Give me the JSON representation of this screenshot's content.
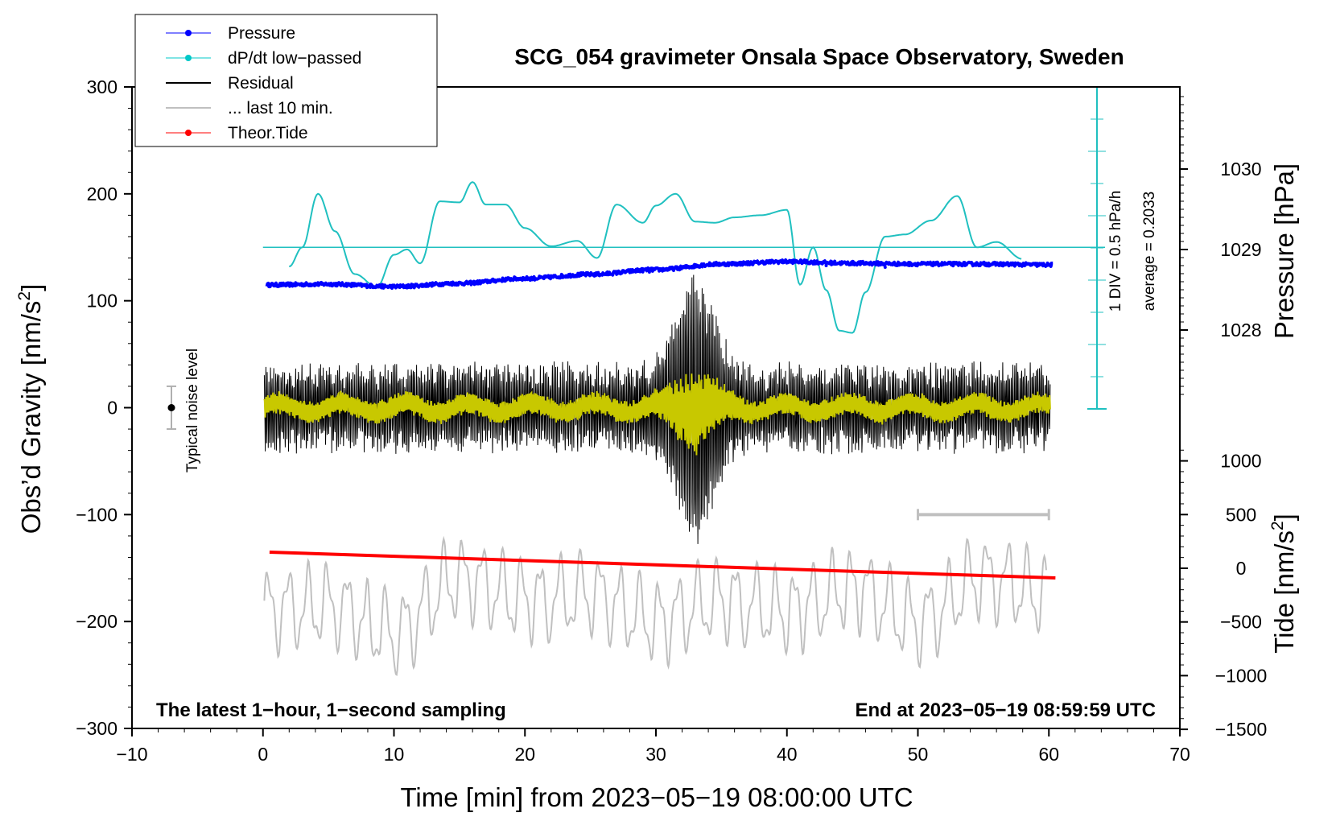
{
  "chart_data": {
    "type": "line",
    "title": "SCG_054 gravimeter Onsala Space Observatory, Sweden",
    "xlabel": "Time [min] from 2023−05−19 08:00:00 UTC",
    "ylabel_left": "Obs’d Gravity [nm/s²]",
    "ylabel_right_top": "Pressure [hPa]",
    "ylabel_right_bottom": "Tide [nm/s²]",
    "xlim": [
      -10,
      70
    ],
    "ylim": [
      -300,
      300
    ],
    "x_ticks": [
      "−10",
      "0",
      "10",
      "20",
      "30",
      "40",
      "50",
      "60",
      "70"
    ],
    "y_ticks": [
      "−300",
      "−200",
      "−100",
      "0",
      "100",
      "200",
      "300"
    ],
    "pressure_ticks": [
      "1028",
      "1029",
      "1030"
    ],
    "tide_ticks": [
      "−1500",
      "−1000",
      "−500",
      "0",
      "500",
      "1000"
    ],
    "note_bottom_left": "The latest 1−hour, 1−second sampling",
    "note_bottom_right": "End at 2023−05−19 08:59:59 UTC",
    "noise_label": "Typical noise level",
    "dpdt_scale_label": "1 DIV = 0.5 hPa/h",
    "dpdt_average_label": "average = 0.2033",
    "legend": [
      {
        "label": "Pressure",
        "color": "#0000ff",
        "marker": true
      },
      {
        "label": "dP/dt low−passed",
        "color": "#00c8c8",
        "marker": true
      },
      {
        "label": "Residual",
        "color": "#000000",
        "marker": false
      },
      {
        "label": "... last 10 min.",
        "color": "#c0c0c0",
        "marker": false
      },
      {
        "label": "Theor.Tide",
        "color": "#ff0000",
        "marker": true
      }
    ],
    "colors": {
      "pressure": "#0000ff",
      "dpdt": "#20c0c0",
      "residual": "#000000",
      "residual_smooth": "#c8c800",
      "last10": "#c0c0c0",
      "tide": "#ff0000",
      "scale_bar": "#c0c0c0"
    },
    "series": [
      {
        "name": "Pressure",
        "units": "hPa",
        "x": [
          0,
          5,
          10,
          15,
          20,
          25,
          30,
          35,
          40,
          45,
          50,
          55,
          60
        ],
        "values": [
          1028.56,
          1028.57,
          1028.54,
          1028.58,
          1028.64,
          1028.69,
          1028.75,
          1028.82,
          1028.85,
          1028.83,
          1028.82,
          1028.82,
          1028.81
        ]
      },
      {
        "name": "dP/dt low−passed",
        "units": "gravity-axis position (nm/s²)",
        "x": [
          2,
          3,
          4.2,
          5.5,
          7,
          8.7,
          10,
          11,
          12,
          13.5,
          15,
          16,
          17,
          18.5,
          20,
          22,
          24,
          25.5,
          27,
          29,
          30,
          31.5,
          33,
          34.5,
          36,
          38,
          40,
          41,
          42,
          43,
          44,
          45,
          46,
          47.5,
          49,
          51,
          53,
          54.5,
          56,
          58
        ],
        "values": [
          132,
          150,
          200,
          165,
          125,
          113,
          143,
          148,
          135,
          193,
          192,
          211,
          190,
          190,
          168,
          151,
          156,
          140,
          190,
          173,
          189,
          200,
          174,
          173,
          178,
          180,
          185,
          115,
          150,
          110,
          72,
          70,
          108,
          160,
          162,
          175,
          198,
          150,
          155,
          139
        ]
      },
      {
        "name": "Residual",
        "units": "nm/s²",
        "note": "1-second samples, approx. ±40 nm/s² oscillation with a burst near 31–35 min",
        "x": [
          0,
          5,
          10,
          15,
          20,
          25,
          30,
          31,
          32,
          33,
          34,
          35,
          40,
          45,
          50,
          55,
          60
        ],
        "values": [
          -60,
          50,
          -50,
          45,
          -40,
          40,
          -80,
          110,
          -130,
          135,
          -120,
          90,
          -45,
          45,
          -40,
          40,
          10
        ]
      },
      {
        "name": "... last 10 min.",
        "units": "nm/s²",
        "x": [
          0,
          5,
          10,
          15,
          20,
          25,
          30,
          35,
          40,
          45,
          50,
          55,
          60
        ],
        "values": [
          -190,
          -185,
          -210,
          -160,
          -180,
          -175,
          -200,
          -180,
          -190,
          -170,
          -200,
          -160,
          -175
        ]
      },
      {
        "name": "Theor.Tide",
        "units": "nm/s² (tide axis)",
        "x": [
          0.5,
          60.5
        ],
        "values": [
          150,
          -90
        ]
      }
    ],
    "last10_scale_bar_minutes": [
      50,
      60
    ],
    "noise_level_range": [
      -20,
      20
    ]
  }
}
